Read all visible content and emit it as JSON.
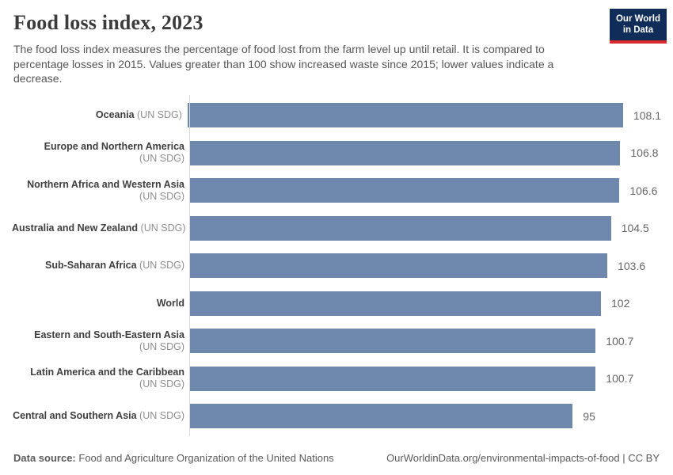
{
  "header": {
    "title": "Food loss index, 2023",
    "subtitle": "The food loss index measures the percentage of food lost from the farm level up until retail. It is compared to percentage losses in 2015. Values greater than 100 show increased waste since 2015; lower values indicate a decrease.",
    "logo": {
      "line1": "Our World",
      "line2": "in Data",
      "bg_color": "#102d5a",
      "accent_color": "#d62c2c"
    }
  },
  "chart_data": {
    "type": "bar",
    "orientation": "horizontal",
    "title": "Food loss index, 2023",
    "xlabel": "",
    "ylabel": "",
    "xlim": [
      0,
      108.1
    ],
    "grid": false,
    "legend": false,
    "bar_color": "#6d87ad",
    "axis_color": "#dadada",
    "rows": [
      {
        "label": "Oceania",
        "suffix": "(UN SDG)",
        "suffix_new_line": false,
        "value": 108.1,
        "display": "108.1"
      },
      {
        "label": "Europe and Northern America",
        "suffix": "(UN SDG)",
        "suffix_new_line": true,
        "value": 106.8,
        "display": "106.8"
      },
      {
        "label": "Northern Africa and Western Asia",
        "suffix": "(UN SDG)",
        "suffix_new_line": true,
        "value": 106.6,
        "display": "106.6"
      },
      {
        "label": "Australia and New Zealand",
        "suffix": "(UN SDG)",
        "suffix_new_line": false,
        "value": 104.5,
        "display": "104.5"
      },
      {
        "label": "Sub-Saharan Africa",
        "suffix": "(UN SDG)",
        "suffix_new_line": false,
        "value": 103.6,
        "display": "103.6"
      },
      {
        "label": "World",
        "suffix": "",
        "suffix_new_line": false,
        "value": 102,
        "display": "102"
      },
      {
        "label": "Eastern and South-Eastern Asia",
        "suffix": "(UN SDG)",
        "suffix_new_line": true,
        "value": 100.7,
        "display": "100.7"
      },
      {
        "label": "Latin America and the Caribbean",
        "suffix": "(UN SDG)",
        "suffix_new_line": true,
        "value": 100.7,
        "display": "100.7"
      },
      {
        "label": "Central and Southern Asia",
        "suffix": "(UN SDG)",
        "suffix_new_line": false,
        "value": 95,
        "display": "95"
      }
    ]
  },
  "footer": {
    "datasource_label": "Data source:",
    "datasource_value": "Food and Agriculture Organization of the United Nations",
    "url": "OurWorldinData.org/environmental-impacts-of-food",
    "separator": "|",
    "license": "CC BY"
  }
}
